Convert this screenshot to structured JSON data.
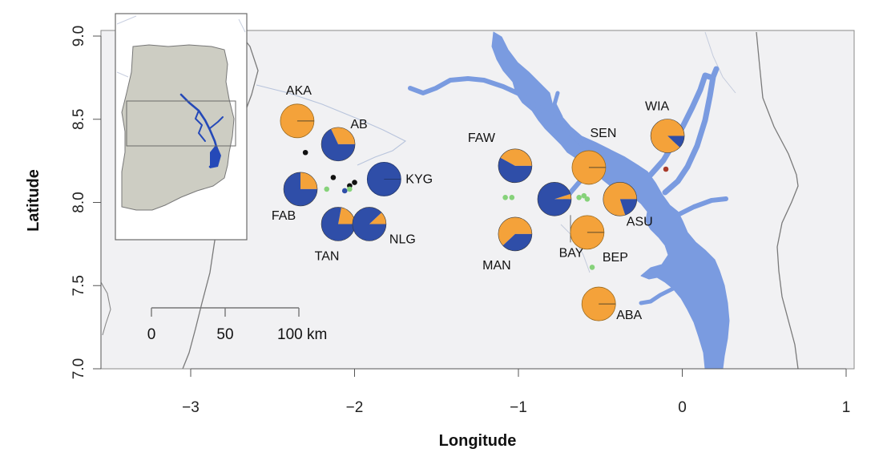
{
  "axes": {
    "xlabel": "Longitude",
    "ylabel": "Latitude",
    "xlim": [
      -3.55,
      1.05
    ],
    "ylim": [
      7.0,
      9.03
    ],
    "x_ticks": [
      -3,
      -2,
      -1,
      0,
      1
    ],
    "x_tick_labels": [
      "−3",
      "−2",
      "−1",
      "0",
      "1"
    ],
    "y_ticks": [
      7.0,
      7.5,
      8.0,
      8.5,
      9.0
    ],
    "y_tick_labels": [
      "7.0",
      "7.5",
      "8.0",
      "8.5",
      "9.0"
    ]
  },
  "scale_bar": {
    "tick_labels": [
      "0",
      "50",
      "100 km"
    ],
    "ticks_km": [
      0,
      50,
      100
    ]
  },
  "colors": {
    "background": "#f1f1f3",
    "water": "#7a9be0",
    "inset_water": "#2549b8",
    "inset_land": "#cdcdc3",
    "pie_orange": "#f4a23a",
    "pie_blue": "#2f4ea8",
    "dot_black": "#111111",
    "dot_green": "#86d27a",
    "dot_blue": "#2f4ea8",
    "dot_red": "#a83a2a",
    "border": "#7a7a7a"
  },
  "chart_data": {
    "type": "pie_map",
    "series_colors": [
      "#f4a23a",
      "#2f4ea8"
    ],
    "sites": [
      {
        "name": "AKA",
        "lon": -2.35,
        "lat": 8.49,
        "orange_fraction": 1.0
      },
      {
        "name": "AB",
        "lon": -2.1,
        "lat": 8.35,
        "orange_fraction": 0.32
      },
      {
        "name": "KYG",
        "lon": -1.82,
        "lat": 8.14,
        "orange_fraction": 0.0
      },
      {
        "name": "FAB",
        "lon": -2.33,
        "lat": 8.08,
        "orange_fraction": 0.25
      },
      {
        "name": "TAN",
        "lon": -2.1,
        "lat": 7.87,
        "orange_fraction": 0.22
      },
      {
        "name": "NLG",
        "lon": -1.91,
        "lat": 7.87,
        "orange_fraction": 0.12
      },
      {
        "name": "FAW",
        "lon": -1.02,
        "lat": 8.22,
        "orange_fraction": 0.42
      },
      {
        "name": "MAN",
        "lon": -1.02,
        "lat": 7.81,
        "orange_fraction": 0.62
      },
      {
        "name": "BAY",
        "lon": -0.78,
        "lat": 8.02,
        "orange_fraction": 0.05
      },
      {
        "name": "SEN",
        "lon": -0.57,
        "lat": 8.21,
        "orange_fraction": 1.0
      },
      {
        "name": "ASU",
        "lon": -0.38,
        "lat": 8.02,
        "orange_fraction": 0.8
      },
      {
        "name": "BEP",
        "lon": -0.58,
        "lat": 7.82,
        "orange_fraction": 1.0
      },
      {
        "name": "WIA",
        "lon": -0.09,
        "lat": 8.4,
        "orange_fraction": 0.88
      },
      {
        "name": "ABA",
        "lon": -0.51,
        "lat": 7.39,
        "orange_fraction": 1.0
      }
    ],
    "points": [
      {
        "lon": -2.3,
        "lat": 8.3,
        "color": "black"
      },
      {
        "lon": -2.13,
        "lat": 8.15,
        "color": "black"
      },
      {
        "lon": -2.03,
        "lat": 8.1,
        "color": "black"
      },
      {
        "lon": -2.0,
        "lat": 8.12,
        "color": "black"
      },
      {
        "lon": -2.06,
        "lat": 8.07,
        "color": "blue"
      },
      {
        "lon": -2.03,
        "lat": 8.08,
        "color": "green"
      },
      {
        "lon": -2.17,
        "lat": 8.08,
        "color": "green"
      },
      {
        "lon": -1.08,
        "lat": 8.03,
        "color": "green"
      },
      {
        "lon": -1.04,
        "lat": 8.03,
        "color": "green"
      },
      {
        "lon": -0.63,
        "lat": 8.03,
        "color": "green"
      },
      {
        "lon": -0.6,
        "lat": 8.04,
        "color": "green"
      },
      {
        "lon": -0.58,
        "lat": 8.02,
        "color": "green"
      },
      {
        "lon": -0.55,
        "lat": 7.61,
        "color": "green"
      },
      {
        "lon": -0.1,
        "lat": 8.2,
        "color": "red"
      }
    ]
  }
}
